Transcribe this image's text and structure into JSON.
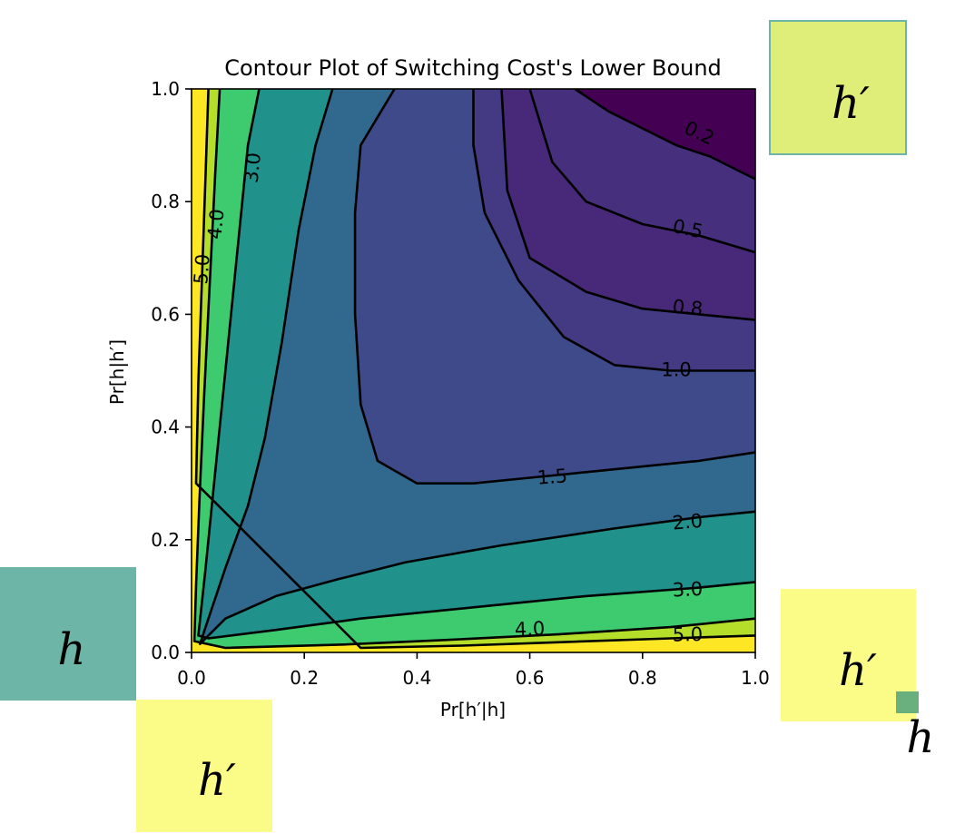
{
  "chart_data": {
    "type": "contour",
    "title": "Contour Plot of Switching Cost's Lower Bound",
    "xlabel": "Pr[h′|h]",
    "ylabel": "Pr[h|h′]",
    "xlim": [
      0.0,
      1.0
    ],
    "ylim": [
      0.0,
      1.0
    ],
    "x_ticks": [
      "0.0",
      "0.2",
      "0.4",
      "0.6",
      "0.8",
      "1.0"
    ],
    "y_ticks": [
      "0.0",
      "0.2",
      "0.4",
      "0.6",
      "0.8",
      "1.0"
    ],
    "levels": [
      0.2,
      0.5,
      0.8,
      1.0,
      1.5,
      2.0,
      3.0,
      4.0,
      5.0
    ],
    "contour_labels": [
      "0.2",
      "0.5",
      "0.8",
      "1.0",
      "1.5",
      "2.0",
      "3.0",
      "4.0",
      "5.0",
      "3.0",
      "4.0",
      "5.0"
    ],
    "colormap": "viridis",
    "band_colors": [
      "#440154",
      "#482878",
      "#443983",
      "#3e4a89",
      "#31688e",
      "#21918c",
      "#3ecb6f",
      "#b5de2b",
      "#fde725"
    ],
    "grid": false
  },
  "corner_boxes": [
    {
      "letter": "h′",
      "color": "#dfee78"
    },
    {
      "letter": "h",
      "color": "#6db5a6"
    },
    {
      "letter": "h′",
      "color": "#fbfb88"
    },
    {
      "letter": "h′",
      "color": "#fbfb88"
    },
    {
      "letter": "h",
      "color": "#6ab07f"
    }
  ]
}
